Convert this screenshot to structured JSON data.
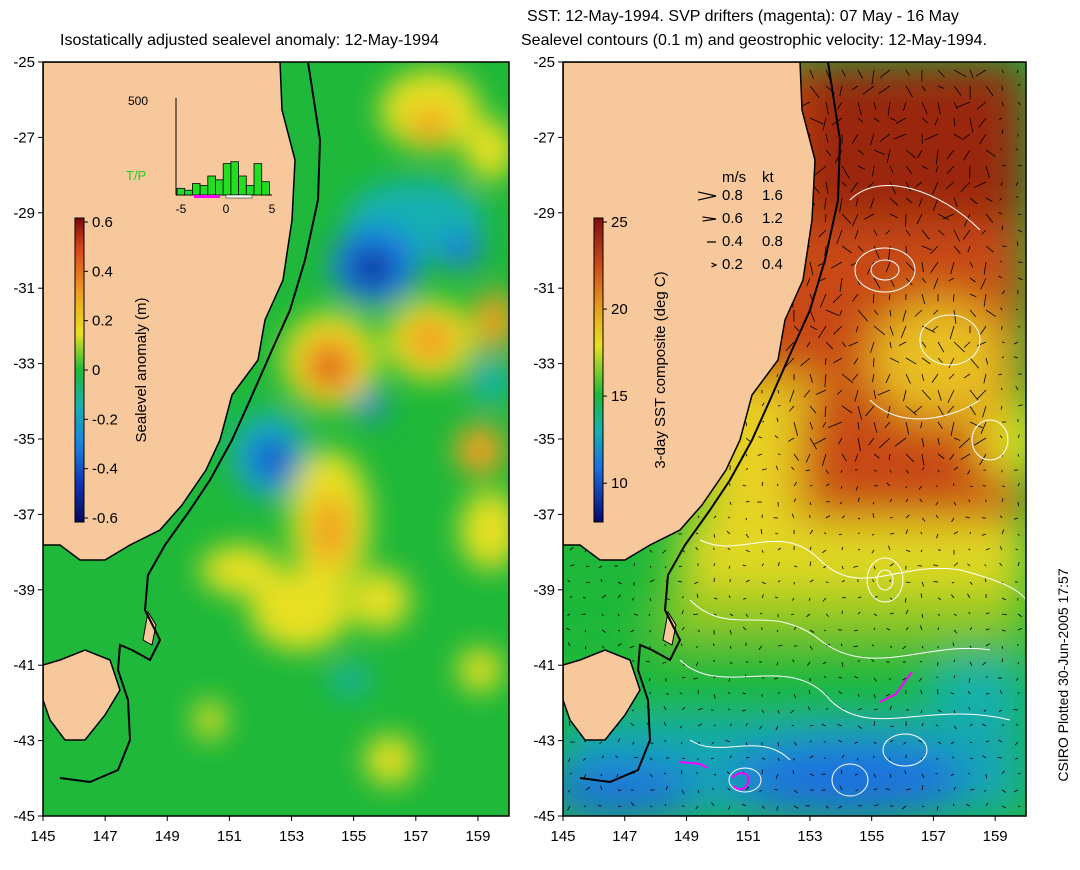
{
  "left_panel": {
    "title": "Isostatically adjusted sealevel anomaly: 12-May-1994",
    "colorbar": {
      "label": "Sealevel anomaly (m)",
      "ticks": [
        "0.6",
        "0.4",
        "0.2",
        "0",
        "-0.2",
        "-0.4",
        "-0.6"
      ],
      "tick_values": [
        0.6,
        0.4,
        0.2,
        0,
        -0.2,
        -0.4,
        -0.6
      ]
    },
    "inset": {
      "ymax_label": "500",
      "series_label": "T/P",
      "x_ticks": [
        "-5",
        "0",
        "5"
      ],
      "bars": [
        0.07,
        0.05,
        0.12,
        0.1,
        0.2,
        0.16,
        0.33,
        0.35,
        0.2,
        0.1,
        0.33,
        0.14
      ]
    }
  },
  "right_panel": {
    "title_line1": "SST: 12-May-1994. SVP drifters (magenta): 07 May - 16 May",
    "title_line2": "Sealevel contours (0.1 m) and geostrophic velocity: 12-May-1994.",
    "colorbar": {
      "label": "3-day SST composite (deg C)",
      "ticks": [
        "25",
        "20",
        "15",
        "10"
      ],
      "tick_values": [
        25,
        20,
        15,
        10
      ],
      "range": [
        8,
        25
      ]
    },
    "velocity_legend": {
      "header_ms": "m/s",
      "header_kt": "kt",
      "rows": [
        {
          "ms": "0.8",
          "kt": "1.6"
        },
        {
          "ms": "0.6",
          "kt": "1.2"
        },
        {
          "ms": "0.4",
          "kt": "0.8"
        },
        {
          "ms": "0.2",
          "kt": "0.4"
        }
      ]
    }
  },
  "axes": {
    "y_ticks": [
      "-25",
      "-27",
      "-29",
      "-31",
      "-33",
      "-35",
      "-37",
      "-39",
      "-41",
      "-43",
      "-45"
    ],
    "x_ticks": [
      "145",
      "147",
      "149",
      "151",
      "153",
      "155",
      "157",
      "159"
    ],
    "lat_range": [
      -45,
      -25
    ],
    "lon_range": [
      145,
      160
    ]
  },
  "footer_credit": "CSIRO Plotted 30-Jun-2005 17:57",
  "colors": {
    "land": "#f7c89c",
    "sea_green": "#1fb83a",
    "coast": "#000000",
    "drifter": "#ff00ff"
  }
}
